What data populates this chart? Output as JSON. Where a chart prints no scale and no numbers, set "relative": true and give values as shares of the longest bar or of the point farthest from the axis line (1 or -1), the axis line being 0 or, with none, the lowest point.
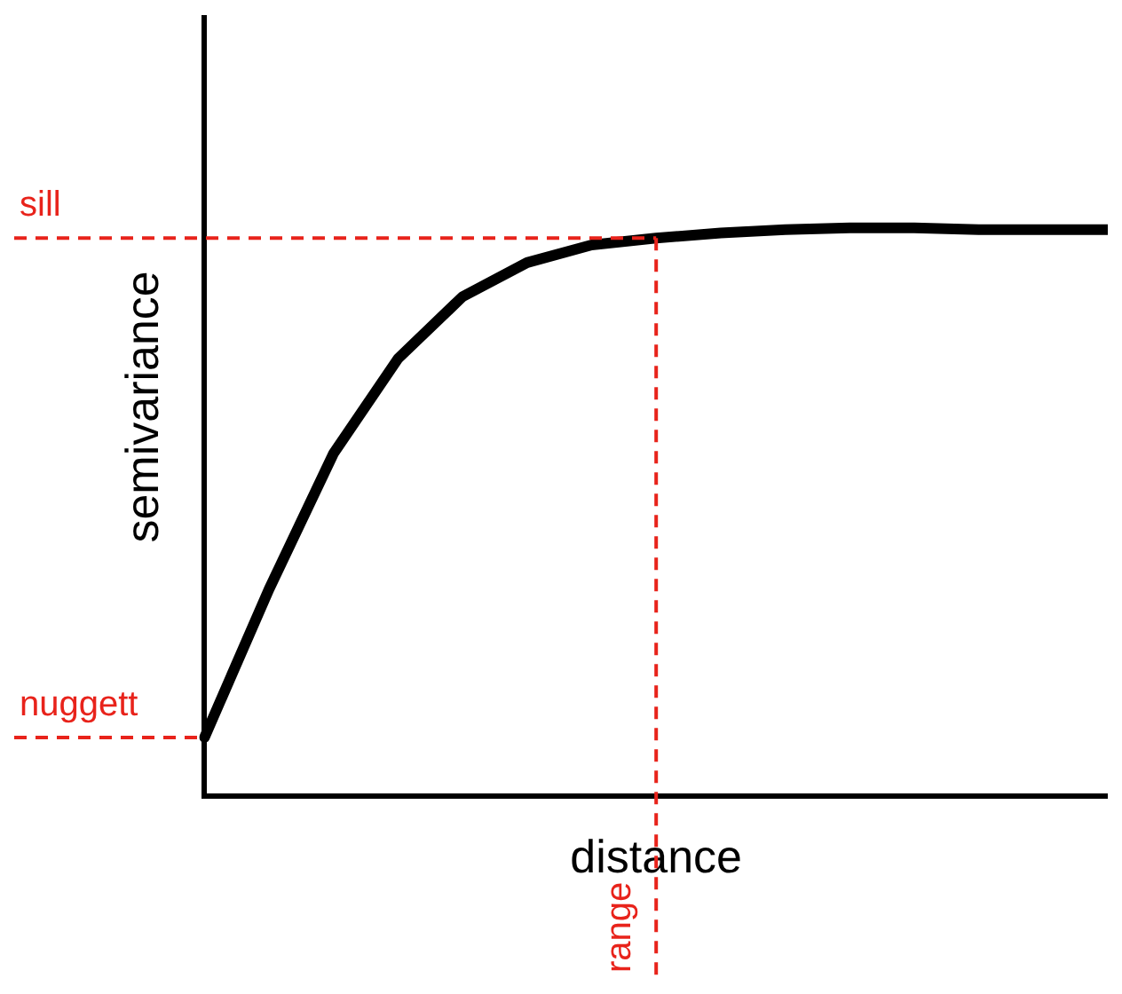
{
  "chart_data": {
    "type": "line",
    "relative": true,
    "xlabel": "distance",
    "ylabel": "semivariance",
    "legend": false,
    "marker": "none",
    "line_style": "solid",
    "categories": [
      null,
      null,
      null,
      null,
      null,
      null,
      null,
      null,
      null,
      null,
      null,
      null,
      null,
      null,
      null
    ],
    "series": [
      {
        "color": "#000000",
        "values": [
          0.103,
          0.364,
          0.603,
          0.77,
          0.879,
          0.939,
          0.97,
          0.982,
          0.991,
          0.997,
          1,
          1,
          0.997,
          0.997,
          0.997
        ]
      }
    ],
    "ref_lines": [
      {
        "axis": "y",
        "value": 0.982,
        "label": "sill",
        "color": "#e8231b",
        "line_style": "dashed"
      },
      {
        "axis": "y",
        "value": 0.103,
        "label": "nuggett",
        "color": "#e8231b",
        "line_style": "dashed"
      },
      {
        "axis": "x",
        "label": "range",
        "color": "#e8231b",
        "line_style": "dashed"
      }
    ]
  }
}
